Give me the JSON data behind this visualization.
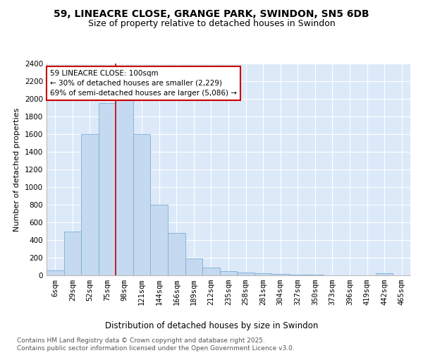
{
  "title": "59, LINEACRE CLOSE, GRANGE PARK, SWINDON, SN5 6DB",
  "subtitle": "Size of property relative to detached houses in Swindon",
  "xlabel": "Distribution of detached houses by size in Swindon",
  "ylabel": "Number of detached properties",
  "bar_color": "#c5d9f0",
  "bar_edge_color": "#7bafd4",
  "background_color": "#dce9f8",
  "grid_color": "#ffffff",
  "annotation_box_color": "#cc0000",
  "vline_color": "#cc0000",
  "annotation_text": "59 LINEACRE CLOSE: 100sqm\n← 30% of detached houses are smaller (2,229)\n69% of semi-detached houses are larger (5,086) →",
  "categories": [
    "6sqm",
    "29sqm",
    "52sqm",
    "75sqm",
    "98sqm",
    "121sqm",
    "144sqm",
    "166sqm",
    "189sqm",
    "212sqm",
    "235sqm",
    "258sqm",
    "281sqm",
    "304sqm",
    "327sqm",
    "350sqm",
    "373sqm",
    "396sqm",
    "419sqm",
    "442sqm",
    "465sqm"
  ],
  "values": [
    60,
    500,
    1600,
    1950,
    2000,
    1600,
    800,
    480,
    195,
    90,
    45,
    30,
    25,
    15,
    10,
    5,
    0,
    0,
    0,
    25,
    0
  ],
  "vline_x": 3.5,
  "ylim": [
    0,
    2400
  ],
  "yticks": [
    0,
    200,
    400,
    600,
    800,
    1000,
    1200,
    1400,
    1600,
    1800,
    2000,
    2200,
    2400
  ],
  "footer": "Contains HM Land Registry data © Crown copyright and database right 2025.\nContains public sector information licensed under the Open Government Licence v3.0.",
  "title_fontsize": 10,
  "subtitle_fontsize": 9,
  "xlabel_fontsize": 8.5,
  "ylabel_fontsize": 8,
  "tick_fontsize": 7.5,
  "annotation_fontsize": 7.5,
  "footer_fontsize": 6.5
}
